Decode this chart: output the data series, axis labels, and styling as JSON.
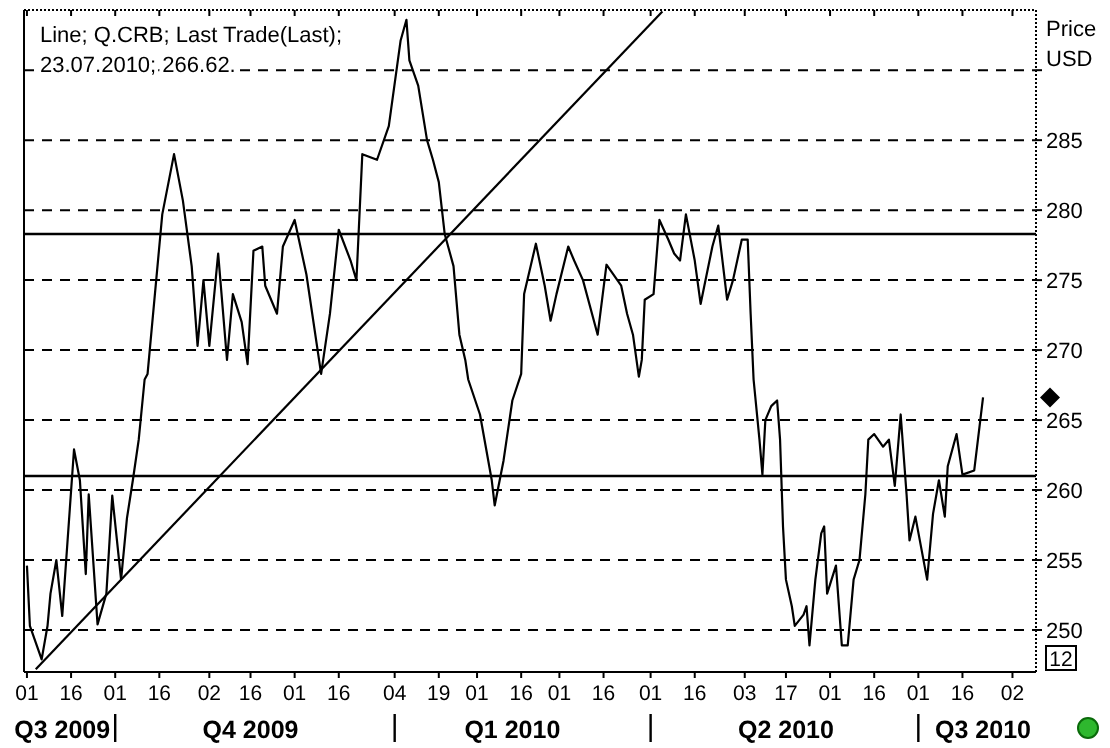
{
  "chart_data": {
    "type": "line",
    "title": "Line; Q.CRB; Last Trade(Last);",
    "subtitle": "23.07.2010; 266.62.",
    "ylabel": "Price USD",
    "annotations": [
      "12"
    ],
    "x": [
      "2009-09-01",
      "2009-09-02",
      "2009-09-06",
      "2009-09-08",
      "2009-09-09",
      "2009-09-11",
      "2009-09-13",
      "2009-09-17",
      "2009-09-19",
      "2009-09-21",
      "2009-09-22",
      "2009-09-25",
      "2009-09-28",
      "2009-09-30",
      "2009-10-03",
      "2009-10-05",
      "2009-10-07",
      "2009-10-09",
      "2009-10-11",
      "2009-10-12",
      "2009-10-17",
      "2009-10-21",
      "2009-10-24",
      "2009-10-27",
      "2009-10-29",
      "2009-10-31",
      "2009-11-02",
      "2009-11-05",
      "2009-11-08",
      "2009-11-10",
      "2009-11-13",
      "2009-11-15",
      "2009-11-17",
      "2009-11-20",
      "2009-11-21",
      "2009-11-25",
      "2009-11-27",
      "2009-12-01",
      "2009-12-05",
      "2009-12-10",
      "2009-12-13",
      "2009-12-16",
      "2009-12-20",
      "2009-12-22",
      "2009-12-24",
      "2009-12-29",
      "2010-01-02",
      "2010-01-06",
      "2010-01-08",
      "2010-01-09",
      "2010-01-12",
      "2010-01-15",
      "2010-01-17",
      "2010-01-19",
      "2010-01-21",
      "2010-01-24",
      "2010-01-26",
      "2010-01-28",
      "2010-01-29",
      "2010-02-02",
      "2010-02-06",
      "2010-02-07",
      "2010-02-10",
      "2010-02-13",
      "2010-02-16",
      "2010-02-17",
      "2010-02-21",
      "2010-02-24",
      "2010-02-26",
      "2010-02-28",
      "2010-03-04",
      "2010-03-06",
      "2010-03-09",
      "2010-03-14",
      "2010-03-17",
      "2010-03-22",
      "2010-03-24",
      "2010-03-26",
      "2010-03-28",
      "2010-03-29",
      "2010-03-30",
      "2010-04-02",
      "2010-04-04",
      "2010-04-07",
      "2010-04-09",
      "2010-04-11",
      "2010-04-13",
      "2010-04-16",
      "2010-04-18",
      "2010-04-22",
      "2010-04-24",
      "2010-04-27",
      "2010-04-29",
      "2010-05-02",
      "2010-05-04",
      "2010-05-05",
      "2010-05-06",
      "2010-05-08",
      "2010-05-09",
      "2010-05-10",
      "2010-05-12",
      "2010-05-14",
      "2010-05-15",
      "2010-05-16",
      "2010-05-17",
      "2010-05-19",
      "2010-05-20",
      "2010-05-23",
      "2010-05-24",
      "2010-05-25",
      "2010-05-27",
      "2010-05-29",
      "2010-05-30",
      "2010-05-31",
      "2010-06-03",
      "2010-06-05",
      "2010-06-07",
      "2010-06-09",
      "2010-06-11",
      "2010-06-13",
      "2010-06-14",
      "2010-06-16",
      "2010-06-19",
      "2010-06-21",
      "2010-06-23",
      "2010-06-25",
      "2010-06-27",
      "2010-06-28",
      "2010-06-30",
      "2010-07-04",
      "2010-07-06",
      "2010-07-08",
      "2010-07-10",
      "2010-07-11",
      "2010-07-14",
      "2010-07-16",
      "2010-07-20",
      "2010-07-23"
    ],
    "series": [
      {
        "color": "#000000",
        "values": [
          254.6,
          250.3,
          247.9,
          250.3,
          252.6,
          255,
          251,
          262.9,
          260.7,
          254,
          259.7,
          250.4,
          252.6,
          259.6,
          253.6,
          258,
          260.7,
          263.6,
          267.9,
          268.3,
          279.7,
          284,
          280.7,
          276,
          270.3,
          275,
          270.3,
          276.9,
          269.3,
          274,
          272,
          269,
          277.1,
          277.4,
          274.6,
          272.6,
          277.4,
          279.3,
          275.4,
          268.3,
          272.6,
          278.6,
          276.4,
          275,
          284,
          283.6,
          286,
          292.1,
          293.6,
          290.7,
          288.9,
          285,
          283.6,
          282,
          278.3,
          276,
          271.1,
          269.3,
          267.9,
          265.4,
          260.7,
          258.9,
          262.1,
          266.4,
          268.3,
          274,
          277.6,
          274.6,
          272.1,
          274,
          277.4,
          276.4,
          275,
          271.1,
          276.1,
          274.6,
          272.6,
          271.1,
          268.1,
          269.3,
          273.6,
          274,
          279.3,
          277.9,
          276.9,
          276.4,
          279.7,
          276.4,
          273.3,
          277.4,
          278.9,
          273.6,
          275,
          277.9,
          277.9,
          272.6,
          267.9,
          263.6,
          261.1,
          265,
          266,
          266.4,
          263.6,
          257.4,
          253.6,
          251.7,
          250.3,
          251.1,
          251.7,
          248.9,
          253.6,
          256.9,
          257.4,
          252.6,
          254.6,
          248.9,
          248.9,
          253.6,
          255,
          259.7,
          263.6,
          264,
          263.1,
          263.6,
          260.3,
          265.4,
          259.7,
          256.4,
          258.1,
          253.6,
          258.3,
          260.7,
          258.1,
          261.7,
          264,
          261.1,
          261.4,
          266.62
        ]
      },
      {
        "type": "line",
        "color": "#000000",
        "x": [
          "2009-09-04",
          "2010-04-05"
        ],
        "values": [
          247.2,
          294.2
        ]
      }
    ],
    "ref_lines": [
      {
        "axis": "y",
        "value": 278.3,
        "color": "#000000"
      },
      {
        "axis": "y",
        "value": 261,
        "color": "#000000"
      }
    ],
    "xlim": [
      "2009-08-31",
      "2010-08-10"
    ],
    "xticks": [
      {
        "value": "2009-09-01",
        "label": "01"
      },
      {
        "value": "2009-09-16",
        "label": "16"
      },
      {
        "value": "2009-10-01",
        "label": "01"
      },
      {
        "value": "2009-10-16",
        "label": "16"
      },
      {
        "value": "2009-11-02",
        "label": "02"
      },
      {
        "value": "2009-11-16",
        "label": "16"
      },
      {
        "value": "2009-12-01",
        "label": "01"
      },
      {
        "value": "2009-12-16",
        "label": "16"
      },
      {
        "value": "2010-01-04",
        "label": "04"
      },
      {
        "value": "2010-01-19",
        "label": "19"
      },
      {
        "value": "2010-02-01",
        "label": "01"
      },
      {
        "value": "2010-02-16",
        "label": "16"
      },
      {
        "value": "2010-03-01",
        "label": "01"
      },
      {
        "value": "2010-03-16",
        "label": "16"
      },
      {
        "value": "2010-04-01",
        "label": "01"
      },
      {
        "value": "2010-04-16",
        "label": "16"
      },
      {
        "value": "2010-05-03",
        "label": "03"
      },
      {
        "value": "2010-05-17",
        "label": "17"
      },
      {
        "value": "2010-06-01",
        "label": "01"
      },
      {
        "value": "2010-06-16",
        "label": "16"
      },
      {
        "value": "2010-07-01",
        "label": "01"
      },
      {
        "value": "2010-07-16",
        "label": "16"
      },
      {
        "value": "2010-08-02",
        "label": "02"
      }
    ],
    "x2lim": [
      "2009-08-31",
      "2010-08-10"
    ],
    "x2ticks": [
      {
        "value": "2009-09-13",
        "label": "Q3 2009"
      },
      {
        "value": "2009-10-01",
        "label": null
      },
      {
        "value": "2009-11-16",
        "label": "Q4 2009"
      },
      {
        "value": "2010-01-04",
        "label": null
      },
      {
        "value": "2010-02-13",
        "label": "Q1 2010"
      },
      {
        "value": "2010-04-01",
        "label": null
      },
      {
        "value": "2010-05-17",
        "label": "Q2 2010"
      },
      {
        "value": "2010-07-01",
        "label": null
      },
      {
        "value": "2010-07-23",
        "label": "Q3 2010"
      }
    ],
    "ylim": [
      247,
      294.3
    ],
    "yticks": [
      250,
      255,
      260,
      265,
      270,
      275,
      280,
      285,
      {
        "value": 290,
        "label": null
      }
    ],
    "grid": "y",
    "line_style": "solid",
    "marker": "none"
  }
}
